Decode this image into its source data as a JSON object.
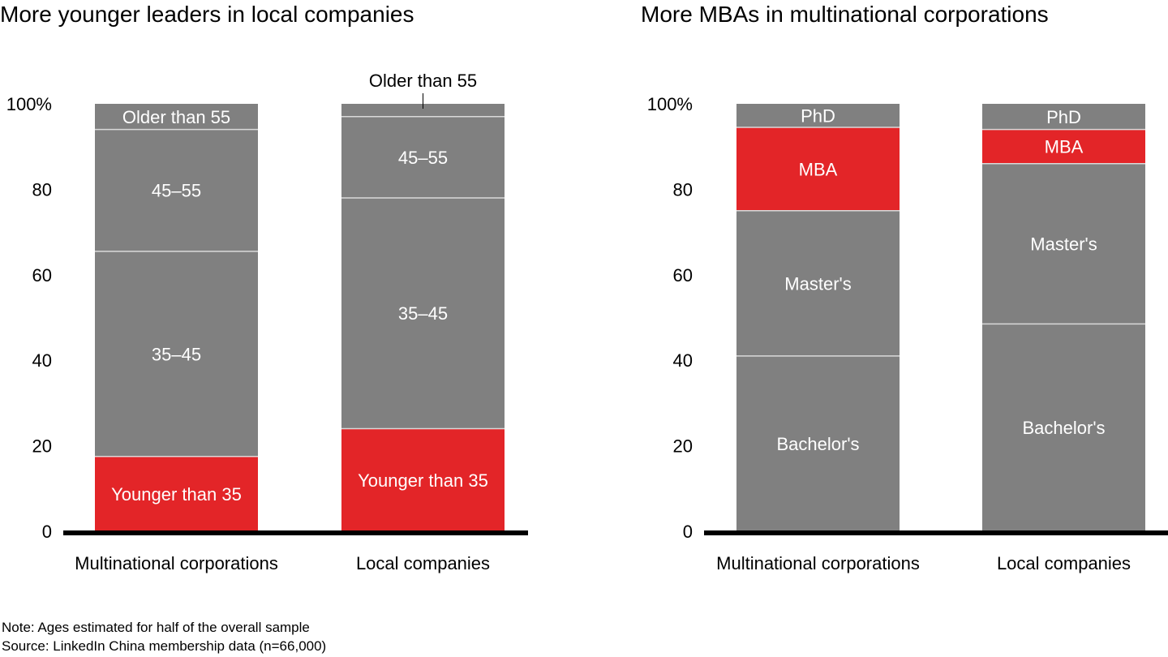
{
  "colors": {
    "gray": "#808080",
    "red": "#e32528",
    "axis": "#000000",
    "divider": "#d9d9d9"
  },
  "chart_data": [
    {
      "type": "bar",
      "stacked": true,
      "title": "More younger leaders in local companies",
      "categories": [
        "Multinational corporations",
        "Local companies"
      ],
      "ylim": [
        0,
        100
      ],
      "yticks": [
        "0",
        "20",
        "40",
        "60",
        "80",
        "100%"
      ],
      "series": [
        {
          "name": "Younger than 35",
          "values": [
            17.5,
            24
          ],
          "color": "red"
        },
        {
          "name": "35–45",
          "values": [
            48,
            54
          ],
          "color": "gray"
        },
        {
          "name": "45–55",
          "values": [
            28.5,
            19
          ],
          "color": "gray"
        },
        {
          "name": "Older than 55",
          "values": [
            6,
            3
          ],
          "color": "gray"
        }
      ],
      "external_label": "Older than 55"
    },
    {
      "type": "bar",
      "stacked": true,
      "title": "More MBAs in multinational corporations",
      "categories": [
        "Multinational corporations",
        "Local companies"
      ],
      "ylim": [
        0,
        100
      ],
      "yticks": [
        "0",
        "20",
        "40",
        "60",
        "80",
        "100%"
      ],
      "series": [
        {
          "name": "Bachelor's",
          "values": [
            41,
            48.5
          ],
          "color": "gray"
        },
        {
          "name": "Master's",
          "values": [
            34,
            37.5
          ],
          "color": "gray"
        },
        {
          "name": "MBA",
          "values": [
            19.5,
            8
          ],
          "color": "red"
        },
        {
          "name": "PhD",
          "values": [
            5.5,
            6
          ],
          "color": "gray"
        }
      ]
    }
  ],
  "footer": {
    "note": "Note: Ages estimated for half of the overall sample",
    "source": "Source: LinkedIn China membership data (n=66,000)"
  }
}
